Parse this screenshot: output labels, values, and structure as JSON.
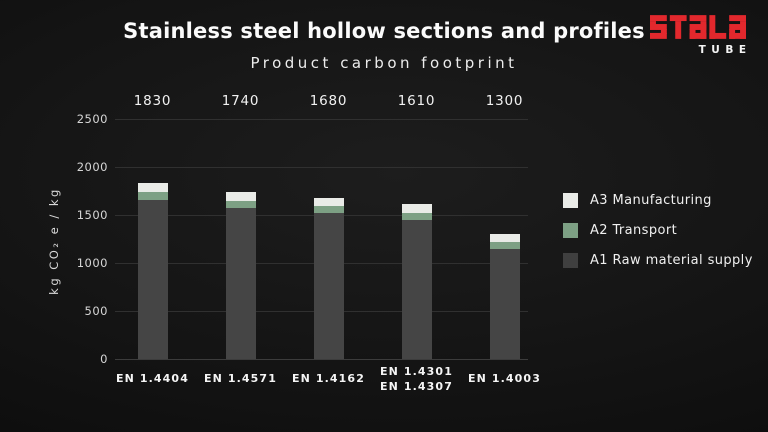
{
  "header": {
    "title": "Stainless steel hollow sections and profiles",
    "subtitle": "Product carbon footprint"
  },
  "logo": {
    "brand": "STALA",
    "sub": "TUBE",
    "brand_color": "#e2282d"
  },
  "chart_data": {
    "type": "bar",
    "stacked": true,
    "title": "Product carbon footprint",
    "ylabel": "kg CO₂ e / kg",
    "ylim": [
      0,
      2500
    ],
    "yticks": [
      0,
      500,
      1000,
      1500,
      2000,
      2500
    ],
    "grid": true,
    "legend_position": "right",
    "legend_order_top_to_bottom": [
      "A3 Manufacturing",
      "A2 Transport",
      "A1 Raw material supply"
    ],
    "categories": [
      "EN 1.4404",
      "EN 1.4571",
      "EN 1.4162",
      "EN 1.4301\nEN 1.4307",
      "EN 1.4003"
    ],
    "totals": [
      1830,
      1740,
      1680,
      1610,
      1300
    ],
    "series": [
      {
        "name": "A1 Raw material supply",
        "color": "#454545",
        "values": [
          1660,
          1575,
          1520,
          1450,
          1150
        ]
      },
      {
        "name": "A2 Transport",
        "color": "#7da084",
        "values": [
          80,
          75,
          70,
          75,
          65
        ]
      },
      {
        "name": "A3 Manufacturing",
        "color": "#e9ebe7",
        "values": [
          90,
          90,
          90,
          85,
          85
        ]
      }
    ],
    "colors": {
      "grid": "#303030",
      "zero_line": "#3c3c3c",
      "tick_text": "#d6d6d6"
    }
  }
}
